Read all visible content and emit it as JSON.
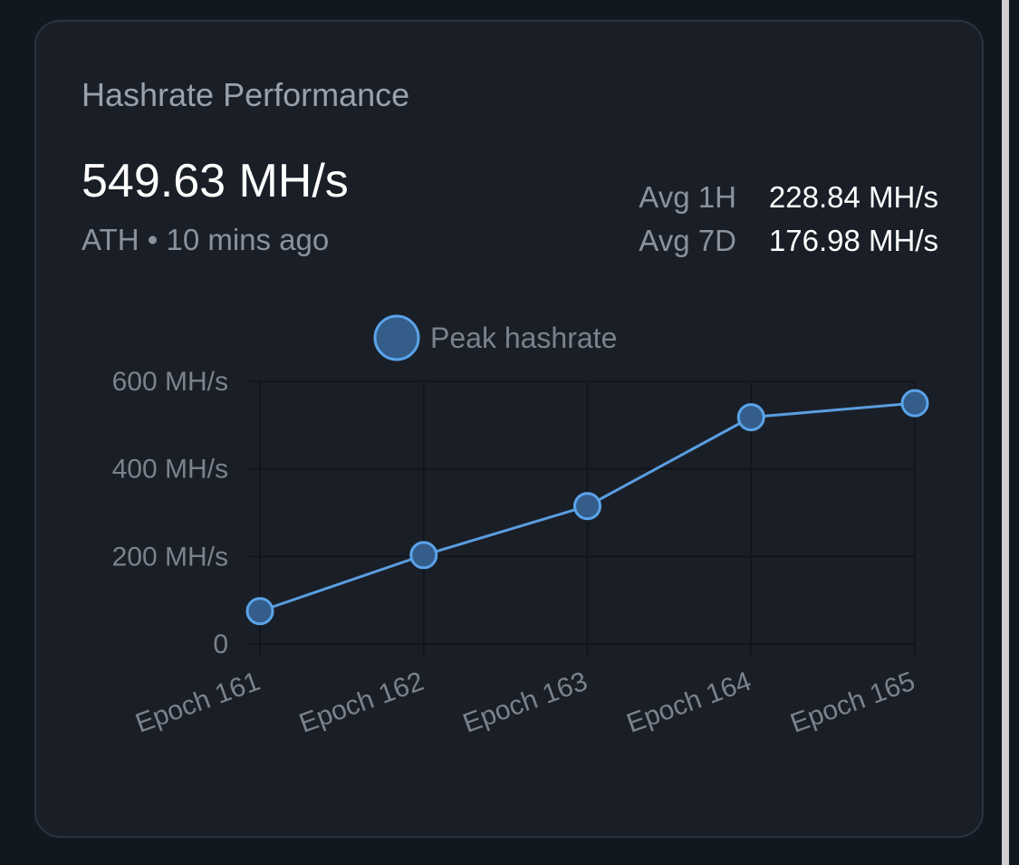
{
  "card": {
    "title": "Hashrate Performance",
    "current_value": "549.63 MH/s",
    "ath_label": "ATH",
    "separator": "•",
    "ath_time": "10 mins ago",
    "stats": [
      {
        "label": "Avg 1H",
        "value": "228.84 MH/s"
      },
      {
        "label": "Avg 7D",
        "value": "176.98 MH/s"
      }
    ]
  },
  "colors": {
    "line": "#5a9de0",
    "point_fill": "#345d8a",
    "point_stroke": "#5aa3ea",
    "grid": "#11151b",
    "tick_text": "#7c828c"
  },
  "chart_data": {
    "type": "line",
    "categories": [
      "Epoch 161",
      "Epoch 162",
      "Epoch 163",
      "Epoch 164",
      "Epoch 165"
    ],
    "series": [
      {
        "name": "Peak hashrate",
        "values": [
          75,
          203,
          315,
          518,
          550
        ]
      }
    ],
    "yticks": [
      "0",
      "200 MH/s",
      "400 MH/s",
      "600 MH/s"
    ],
    "ytick_values": [
      0,
      200,
      400,
      600
    ],
    "ylim": [
      0,
      600
    ],
    "grid": true,
    "legend": "top-center",
    "x_tick_rotation": -20
  }
}
